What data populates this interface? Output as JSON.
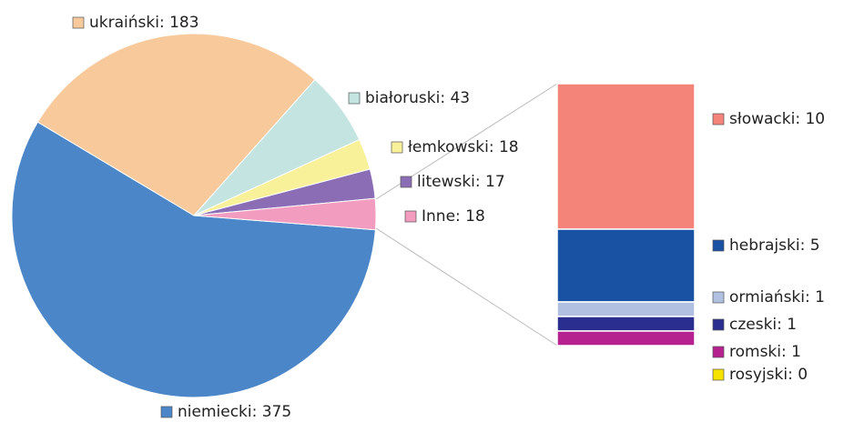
{
  "chart_data": [
    {
      "type": "pie",
      "labels": [
        "niemiecki: 375",
        "ukraiński: 183",
        "białoruski: 43",
        "łemkowski: 18",
        "litewski: 17",
        "Inne: 18"
      ],
      "values": [
        375,
        183,
        43,
        18,
        17,
        18
      ],
      "colors": [
        "#4a86c8",
        "#f7c99b",
        "#c3e4e0",
        "#f8f19a",
        "#8a6db5",
        "#f29cbf"
      ]
    },
    {
      "type": "stacked-bar",
      "labels": [
        "słowacki: 10",
        "hebrajski: 5",
        "ormiański: 1",
        "czeski: 1",
        "romski: 1",
        "rosyjski: 0"
      ],
      "values": [
        10,
        5,
        1,
        1,
        1,
        0
      ],
      "colors": [
        "#f4837a",
        "#1a52a3",
        "#b1bfe0",
        "#2a2f8f",
        "#b5228f",
        "#f7e300"
      ]
    }
  ]
}
